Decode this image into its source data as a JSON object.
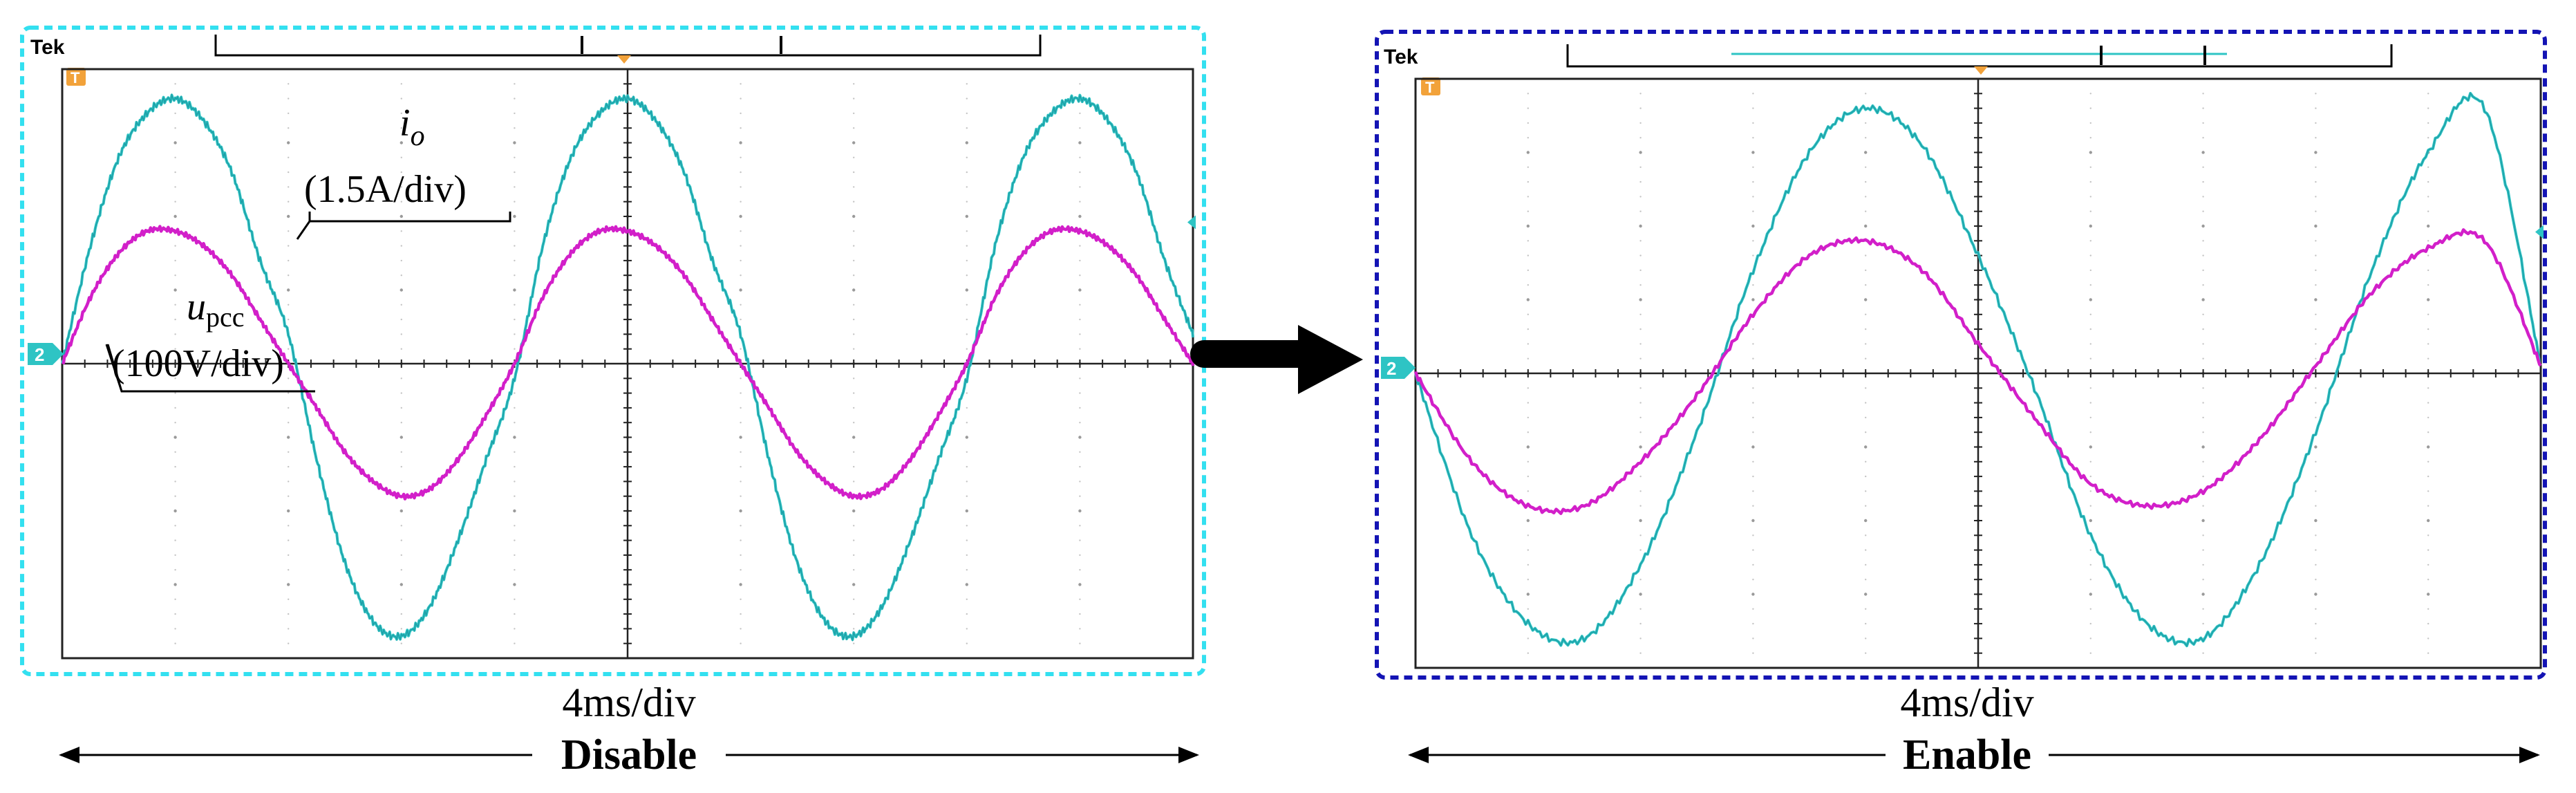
{
  "scope_brand": "Tek",
  "channel_marker": "2",
  "colors": {
    "current": "#2ec4c4",
    "current_dark": "#1a8f9a",
    "voltage": "#d21fc9",
    "left_frame": "#33e0f0",
    "right_frame": "#1414b4",
    "trigger": "#f2a23a",
    "arrow": "#000000"
  },
  "annotations": {
    "io_main": "i",
    "io_sub": "o",
    "io_scale": "(1.5A/div)",
    "upcc_main": "u",
    "upcc_sub": "pcc",
    "upcc_scale": "(100V/div)"
  },
  "chart_data": [
    {
      "type": "line",
      "title": "Disable",
      "xlabel": "4ms/div",
      "time_per_div_ms": 4,
      "divisions": {
        "x": 10,
        "y": 8
      },
      "grid": true,
      "x_unit": "div",
      "xlim": [
        0,
        10
      ],
      "ylim": [
        -4,
        4
      ],
      "series": [
        {
          "name": "i_o",
          "scale": "1.5A/div",
          "color": "current",
          "x": [
            0,
            0.25,
            0.5,
            0.75,
            1.0,
            1.25,
            1.5,
            1.75,
            2.0,
            2.25,
            2.5,
            2.75,
            3.0,
            3.25,
            3.5,
            3.75,
            4.0,
            4.25,
            4.5,
            4.75,
            5.0,
            5.25,
            5.5,
            5.75,
            6.0,
            6.25,
            6.5,
            6.75,
            7.0,
            7.25,
            7.5,
            7.75,
            8.0,
            8.25,
            8.5,
            8.75,
            9.0,
            9.25,
            9.5,
            9.75,
            10.0
          ],
          "y": [
            0,
            1.6,
            2.8,
            3.4,
            3.6,
            3.3,
            2.6,
            1.4,
            0.4,
            -1.3,
            -2.7,
            -3.5,
            -3.7,
            -3.3,
            -2.4,
            -1.3,
            -0.2,
            1.6,
            2.8,
            3.4,
            3.6,
            3.3,
            2.6,
            1.4,
            0.4,
            -1.3,
            -2.7,
            -3.5,
            -3.7,
            -3.3,
            -2.4,
            -1.3,
            -0.2,
            1.6,
            2.8,
            3.4,
            3.6,
            3.3,
            2.6,
            1.4,
            0.4
          ]
        },
        {
          "name": "u_pcc",
          "scale": "100V/div",
          "color": "voltage",
          "x": [
            0,
            0.25,
            0.5,
            0.75,
            1.0,
            1.25,
            1.5,
            1.75,
            2.0,
            2.25,
            2.5,
            2.75,
            3.0,
            3.25,
            3.5,
            3.75,
            4.0,
            4.25,
            4.5,
            4.75,
            5.0,
            5.25,
            5.5,
            5.75,
            6.0,
            6.25,
            6.5,
            6.75,
            7.0,
            7.25,
            7.5,
            7.75,
            8.0,
            8.25,
            8.5,
            8.75,
            9.0,
            9.25,
            9.5,
            9.75,
            10.0
          ],
          "y": [
            0,
            0.9,
            1.5,
            1.8,
            1.8,
            1.6,
            1.2,
            0.6,
            0,
            -0.6,
            -1.2,
            -1.6,
            -1.8,
            -1.7,
            -1.3,
            -0.7,
            0,
            0.9,
            1.5,
            1.8,
            1.8,
            1.6,
            1.2,
            0.6,
            0,
            -0.6,
            -1.2,
            -1.6,
            -1.8,
            -1.7,
            -1.3,
            -0.7,
            0,
            0.9,
            1.5,
            1.8,
            1.8,
            1.6,
            1.2,
            0.6,
            0
          ]
        }
      ]
    },
    {
      "type": "line",
      "title": "Enable",
      "xlabel": "4ms/div",
      "time_per_div_ms": 4,
      "divisions": {
        "x": 10,
        "y": 8
      },
      "grid": true,
      "x_unit": "div",
      "xlim": [
        0,
        10
      ],
      "ylim": [
        -4,
        4
      ],
      "series": [
        {
          "name": "i_o",
          "scale": "1.5A/div",
          "color": "current",
          "x": [
            0,
            0.5,
            1.0,
            1.5,
            2.0,
            2.5,
            3.0,
            3.5,
            4.0,
            4.5,
            5.0,
            5.5,
            6.0,
            6.5,
            7.0,
            7.5,
            8.0,
            8.5,
            9.0,
            9.5,
            10.0
          ],
          "y": [
            0,
            -2.2,
            -3.4,
            -3.6,
            -2.6,
            -0.8,
            1.4,
            3.0,
            3.6,
            3.1,
            1.6,
            -0.2,
            -2.2,
            -3.4,
            -3.6,
            -2.6,
            -0.8,
            1.4,
            3.0,
            3.6,
            0.1
          ]
        },
        {
          "name": "u_pcc",
          "scale": "100V/div",
          "color": "voltage",
          "x": [
            0,
            0.5,
            1.0,
            1.5,
            2.0,
            2.5,
            3.0,
            3.5,
            4.0,
            4.5,
            5.0,
            5.5,
            6.0,
            6.5,
            7.0,
            7.5,
            8.0,
            8.5,
            9.0,
            9.5,
            10.0
          ],
          "y": [
            0,
            -1.2,
            -1.8,
            -1.8,
            -1.2,
            -0.3,
            0.8,
            1.6,
            1.8,
            1.4,
            0.4,
            -0.6,
            -1.5,
            -1.8,
            -1.6,
            -0.9,
            0.1,
            1.1,
            1.7,
            1.8,
            0.1
          ]
        }
      ]
    }
  ],
  "footer": {
    "left_timebase": "4ms/div",
    "left_label": "Disable",
    "right_timebase": "4ms/div",
    "right_label": "Enable"
  }
}
